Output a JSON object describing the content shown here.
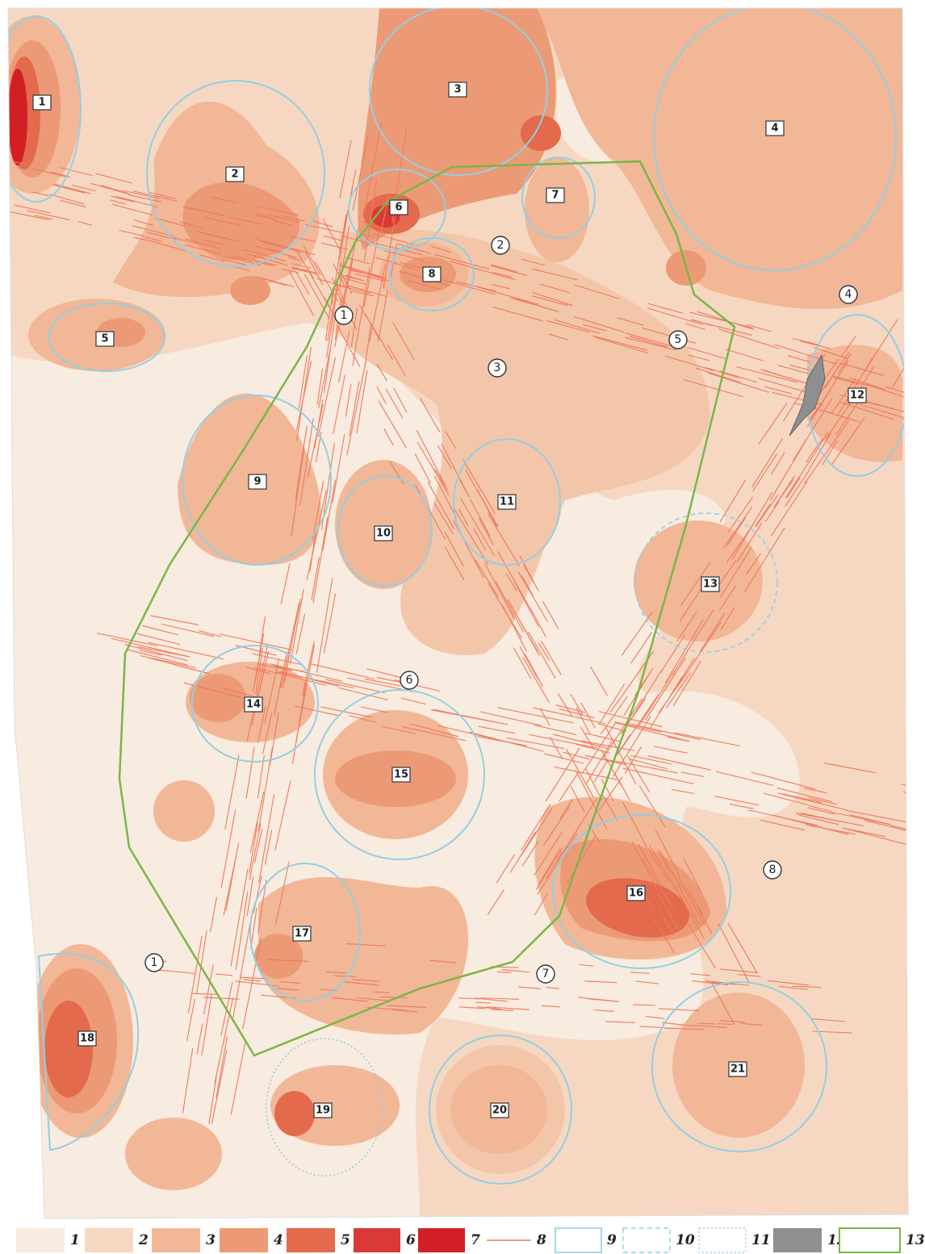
{
  "map": {
    "zones": [
      "1",
      "2",
      "3",
      "4",
      "5",
      "6",
      "7",
      "8",
      "9",
      "10",
      "11",
      "12",
      "13",
      "14",
      "15",
      "16",
      "17",
      "18",
      "19",
      "20",
      "21"
    ],
    "markers": [
      "1",
      "2",
      "3",
      "4",
      "5",
      "6",
      "7",
      "8",
      "1"
    ],
    "legend": [
      "1",
      "2",
      "3",
      "4",
      "5",
      "6",
      "7",
      "8",
      "9",
      "10",
      "11",
      "12",
      "13"
    ]
  }
}
